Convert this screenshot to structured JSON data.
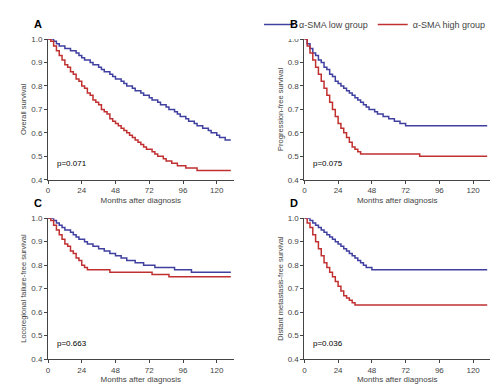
{
  "chart_data": [
    {
      "type": "step",
      "title": "A",
      "xlabel": "Months after diagnosis",
      "ylabel": "Overall survival",
      "xlim": [
        0,
        132
      ],
      "xticks": [
        0,
        24,
        48,
        72,
        96,
        120
      ],
      "ylim": [
        0.4,
        1.0
      ],
      "yticks": [
        0.4,
        0.5,
        0.6,
        0.7,
        0.8,
        0.9,
        {
          "value": 1.0,
          "label": "1.0"
        }
      ],
      "grid": false,
      "annotations": [
        {
          "text": "p=0.071",
          "x": 5,
          "y": 0.44
        }
      ],
      "x": [
        0,
        2,
        4,
        6,
        8,
        10,
        12,
        14,
        16,
        18,
        20,
        22,
        24,
        26,
        28,
        30,
        32,
        34,
        36,
        38,
        40,
        42,
        44,
        46,
        48,
        50,
        52,
        54,
        56,
        58,
        60,
        62,
        64,
        66,
        68,
        70,
        72,
        74,
        76,
        78,
        80,
        82,
        84,
        86,
        88,
        90,
        92,
        94,
        96,
        98,
        100,
        102,
        104,
        106,
        108,
        110,
        112,
        114,
        116,
        118,
        120,
        122,
        124,
        126,
        128,
        130
      ],
      "series": [
        {
          "name": "α-SMA low group",
          "color": "#4040a0",
          "values": [
            1.0,
            1.0,
            0.99,
            0.98,
            0.97,
            0.97,
            0.96,
            0.96,
            0.95,
            0.95,
            0.94,
            0.93,
            0.92,
            0.91,
            0.91,
            0.9,
            0.89,
            0.89,
            0.88,
            0.87,
            0.86,
            0.86,
            0.85,
            0.84,
            0.83,
            0.83,
            0.82,
            0.81,
            0.8,
            0.8,
            0.79,
            0.78,
            0.78,
            0.77,
            0.76,
            0.76,
            0.75,
            0.74,
            0.74,
            0.73,
            0.72,
            0.72,
            0.71,
            0.7,
            0.7,
            0.69,
            0.68,
            0.67,
            0.67,
            0.66,
            0.65,
            0.65,
            0.64,
            0.63,
            0.63,
            0.62,
            0.62,
            0.61,
            0.6,
            0.6,
            0.59,
            0.58,
            0.58,
            0.57,
            0.57,
            0.57
          ]
        },
        {
          "name": "α-SMA high group",
          "color": "#c03030",
          "values": [
            1.0,
            0.99,
            0.97,
            0.95,
            0.93,
            0.91,
            0.89,
            0.88,
            0.86,
            0.85,
            0.83,
            0.82,
            0.8,
            0.79,
            0.77,
            0.76,
            0.74,
            0.73,
            0.72,
            0.7,
            0.69,
            0.68,
            0.66,
            0.65,
            0.64,
            0.63,
            0.62,
            0.61,
            0.6,
            0.59,
            0.58,
            0.57,
            0.56,
            0.55,
            0.54,
            0.53,
            0.53,
            0.52,
            0.51,
            0.5,
            0.5,
            0.49,
            0.48,
            0.48,
            0.47,
            0.47,
            0.46,
            0.46,
            0.46,
            0.45,
            0.45,
            0.45,
            0.45,
            0.44,
            0.44,
            0.44,
            0.44,
            0.44,
            0.44,
            0.44,
            0.44,
            0.44,
            0.44,
            0.44,
            0.44,
            0.44
          ]
        }
      ]
    },
    {
      "type": "step",
      "title": "B",
      "xlabel": "Months after diagnosis",
      "ylabel": "Progression-free survival",
      "xlim": [
        0,
        132
      ],
      "xticks": [
        0,
        24,
        48,
        72,
        96,
        120
      ],
      "ylim": [
        0.4,
        1.0
      ],
      "yticks": [
        0.4,
        0.5,
        0.6,
        0.7,
        0.8,
        0.9,
        {
          "value": 1.0,
          "label": "1.0"
        }
      ],
      "grid": false,
      "annotations": [
        {
          "text": "p=0.075",
          "x": 5,
          "y": 0.44
        }
      ],
      "x": [
        0,
        2,
        4,
        6,
        8,
        10,
        12,
        14,
        16,
        18,
        20,
        22,
        24,
        26,
        28,
        30,
        32,
        34,
        36,
        38,
        40,
        42,
        44,
        46,
        48,
        50,
        52,
        54,
        56,
        58,
        60,
        62,
        64,
        66,
        68,
        70,
        72,
        74,
        76,
        78,
        80,
        82,
        84,
        86,
        88,
        90,
        92,
        94,
        96,
        98,
        100,
        102,
        104,
        106,
        108,
        110,
        112,
        114,
        116,
        118,
        120,
        122,
        124,
        126,
        128,
        130
      ],
      "series": [
        {
          "name": "α-SMA low group",
          "color": "#4040a0",
          "values": [
            1.0,
            0.98,
            0.96,
            0.94,
            0.93,
            0.91,
            0.9,
            0.88,
            0.87,
            0.85,
            0.84,
            0.82,
            0.81,
            0.8,
            0.79,
            0.78,
            0.77,
            0.76,
            0.75,
            0.74,
            0.73,
            0.72,
            0.71,
            0.7,
            0.7,
            0.69,
            0.68,
            0.68,
            0.67,
            0.67,
            0.66,
            0.66,
            0.65,
            0.65,
            0.64,
            0.64,
            0.63,
            0.63,
            0.63,
            0.63,
            0.63,
            0.63,
            0.63,
            0.63,
            0.63,
            0.63,
            0.63,
            0.63,
            0.63,
            0.63,
            0.63,
            0.63,
            0.63,
            0.63,
            0.63,
            0.63,
            0.63,
            0.63,
            0.63,
            0.63,
            0.63,
            0.63,
            0.63,
            0.63,
            0.63,
            0.63
          ]
        },
        {
          "name": "α-SMA high group",
          "color": "#c03030",
          "values": [
            1.0,
            0.97,
            0.94,
            0.91,
            0.88,
            0.85,
            0.82,
            0.79,
            0.76,
            0.73,
            0.7,
            0.67,
            0.64,
            0.62,
            0.6,
            0.58,
            0.56,
            0.54,
            0.53,
            0.52,
            0.51,
            0.51,
            0.51,
            0.51,
            0.51,
            0.51,
            0.51,
            0.51,
            0.51,
            0.51,
            0.51,
            0.51,
            0.51,
            0.51,
            0.51,
            0.51,
            0.51,
            0.51,
            0.51,
            0.51,
            0.51,
            0.5,
            0.5,
            0.5,
            0.5,
            0.5,
            0.5,
            0.5,
            0.5,
            0.5,
            0.5,
            0.5,
            0.5,
            0.5,
            0.5,
            0.5,
            0.5,
            0.5,
            0.5,
            0.5,
            0.5,
            0.5,
            0.5,
            0.5,
            0.5,
            0.5
          ]
        }
      ]
    },
    {
      "type": "step",
      "title": "C",
      "xlabel": "Months after diagnosis",
      "ylabel": "Locoregional failure-free survival",
      "xlim": [
        0,
        132
      ],
      "xticks": [
        0,
        24,
        48,
        72,
        96,
        120
      ],
      "ylim": [
        0.4,
        1.0
      ],
      "yticks": [
        0.4,
        0.5,
        0.6,
        0.7,
        0.8,
        0.9,
        {
          "value": 1.0,
          "label": "1.0"
        }
      ],
      "grid": false,
      "annotations": [
        {
          "text": "p=0.663",
          "x": 5,
          "y": 0.44
        }
      ],
      "x": [
        0,
        2,
        4,
        6,
        8,
        10,
        12,
        14,
        16,
        18,
        20,
        22,
        24,
        26,
        28,
        30,
        32,
        34,
        36,
        38,
        40,
        42,
        44,
        46,
        48,
        50,
        52,
        54,
        56,
        58,
        60,
        62,
        64,
        66,
        68,
        70,
        72,
        74,
        76,
        78,
        80,
        82,
        84,
        86,
        88,
        90,
        92,
        94,
        96,
        98,
        100,
        102,
        104,
        106,
        108,
        110,
        112,
        114,
        116,
        118,
        120,
        122,
        124,
        126,
        128,
        130
      ],
      "series": [
        {
          "name": "α-SMA low group",
          "color": "#4040a0",
          "values": [
            1.0,
            1.0,
            0.99,
            0.98,
            0.97,
            0.96,
            0.95,
            0.95,
            0.94,
            0.93,
            0.92,
            0.91,
            0.91,
            0.9,
            0.89,
            0.89,
            0.88,
            0.88,
            0.87,
            0.87,
            0.86,
            0.86,
            0.85,
            0.85,
            0.84,
            0.84,
            0.83,
            0.83,
            0.82,
            0.82,
            0.82,
            0.81,
            0.81,
            0.81,
            0.8,
            0.8,
            0.8,
            0.8,
            0.79,
            0.79,
            0.79,
            0.79,
            0.79,
            0.79,
            0.79,
            0.78,
            0.78,
            0.78,
            0.78,
            0.78,
            0.78,
            0.77,
            0.77,
            0.77,
            0.77,
            0.77,
            0.77,
            0.77,
            0.77,
            0.77,
            0.77,
            0.77,
            0.77,
            0.77,
            0.77,
            0.77
          ]
        },
        {
          "name": "α-SMA high group",
          "color": "#c03030",
          "values": [
            1.0,
            0.99,
            0.97,
            0.95,
            0.93,
            0.91,
            0.89,
            0.88,
            0.86,
            0.85,
            0.83,
            0.82,
            0.8,
            0.79,
            0.78,
            0.78,
            0.78,
            0.78,
            0.78,
            0.78,
            0.78,
            0.78,
            0.77,
            0.77,
            0.77,
            0.77,
            0.77,
            0.77,
            0.77,
            0.77,
            0.77,
            0.77,
            0.77,
            0.77,
            0.77,
            0.77,
            0.77,
            0.76,
            0.76,
            0.76,
            0.76,
            0.76,
            0.76,
            0.75,
            0.75,
            0.75,
            0.75,
            0.75,
            0.75,
            0.75,
            0.75,
            0.75,
            0.75,
            0.75,
            0.75,
            0.75,
            0.75,
            0.75,
            0.75,
            0.75,
            0.75,
            0.75,
            0.75,
            0.75,
            0.75,
            0.75
          ]
        }
      ]
    },
    {
      "type": "step",
      "title": "D",
      "xlabel": "Months after diagnosis",
      "ylabel": "Distant metastasis-free survival",
      "xlim": [
        0,
        132
      ],
      "xticks": [
        0,
        24,
        48,
        72,
        96,
        120
      ],
      "ylim": [
        0.4,
        1.0
      ],
      "yticks": [
        0.4,
        0.5,
        0.6,
        0.7,
        0.8,
        0.9,
        {
          "value": 1.0,
          "label": "1.0"
        }
      ],
      "grid": false,
      "annotations": [
        {
          "text": "p=0.036",
          "x": 5,
          "y": 0.44
        }
      ],
      "x": [
        0,
        2,
        4,
        6,
        8,
        10,
        12,
        14,
        16,
        18,
        20,
        22,
        24,
        26,
        28,
        30,
        32,
        34,
        36,
        38,
        40,
        42,
        44,
        46,
        48,
        50,
        52,
        54,
        56,
        58,
        60,
        62,
        64,
        66,
        68,
        70,
        72,
        74,
        76,
        78,
        80,
        82,
        84,
        86,
        88,
        90,
        92,
        94,
        96,
        98,
        100,
        102,
        104,
        106,
        108,
        110,
        112,
        114,
        116,
        118,
        120,
        122,
        124,
        126,
        128,
        130
      ],
      "series": [
        {
          "name": "α-SMA low group",
          "color": "#4040a0",
          "values": [
            1.0,
            1.0,
            0.99,
            0.98,
            0.97,
            0.96,
            0.95,
            0.94,
            0.93,
            0.92,
            0.91,
            0.9,
            0.89,
            0.88,
            0.87,
            0.86,
            0.85,
            0.84,
            0.83,
            0.82,
            0.81,
            0.8,
            0.79,
            0.79,
            0.78,
            0.78,
            0.78,
            0.78,
            0.78,
            0.78,
            0.78,
            0.78,
            0.78,
            0.78,
            0.78,
            0.78,
            0.78,
            0.78,
            0.78,
            0.78,
            0.78,
            0.78,
            0.78,
            0.78,
            0.78,
            0.78,
            0.78,
            0.78,
            0.78,
            0.78,
            0.78,
            0.78,
            0.78,
            0.78,
            0.78,
            0.78,
            0.78,
            0.78,
            0.78,
            0.78,
            0.78,
            0.78,
            0.78,
            0.78,
            0.78,
            0.78
          ]
        },
        {
          "name": "α-SMA high group",
          "color": "#c03030",
          "values": [
            1.0,
            0.98,
            0.96,
            0.93,
            0.9,
            0.87,
            0.84,
            0.81,
            0.79,
            0.77,
            0.75,
            0.73,
            0.71,
            0.69,
            0.67,
            0.66,
            0.65,
            0.64,
            0.63,
            0.63,
            0.63,
            0.63,
            0.63,
            0.63,
            0.63,
            0.63,
            0.63,
            0.63,
            0.63,
            0.63,
            0.63,
            0.63,
            0.63,
            0.63,
            0.63,
            0.63,
            0.63,
            0.63,
            0.63,
            0.63,
            0.63,
            0.63,
            0.63,
            0.63,
            0.63,
            0.63,
            0.63,
            0.63,
            0.63,
            0.63,
            0.63,
            0.63,
            0.63,
            0.63,
            0.63,
            0.63,
            0.63,
            0.63,
            0.63,
            0.63,
            0.63,
            0.63,
            0.63,
            0.63,
            0.63,
            0.63
          ]
        }
      ]
    }
  ]
}
